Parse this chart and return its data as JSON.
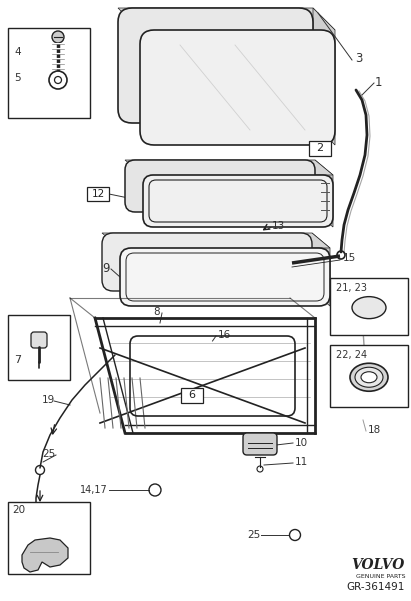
{
  "bg_color": "#ffffff",
  "lc": "#222222",
  "lbl": "#333333",
  "gray1": "#cccccc",
  "gray2": "#aaaaaa",
  "volvo_text": "VOLVO",
  "genuine_parts": "GENUINE PARTS",
  "part_number": "GR-361491",
  "figsize": [
    4.11,
    6.01
  ],
  "dpi": 100
}
